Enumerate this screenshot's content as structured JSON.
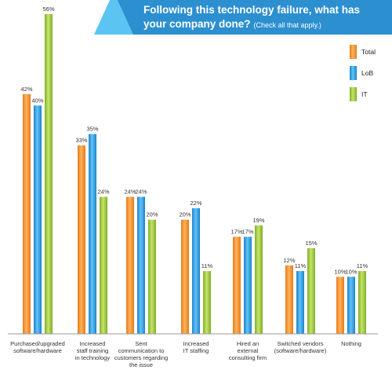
{
  "chart_data": {
    "type": "bar",
    "title_line1": "Following this technology failure, what has",
    "title_line2": "your company done?",
    "subtitle": "(Check all that apply.)",
    "categories": [
      [
        "Purchased/upgraded",
        "software/hardware"
      ],
      [
        "Increased",
        "staff training",
        "in technology"
      ],
      [
        "Sent",
        "communication to",
        "customers regarding",
        "the issue"
      ],
      [
        "Increased",
        "IT staffing"
      ],
      [
        "Hired an",
        "external",
        "consulting firm"
      ],
      [
        "Switched vendors",
        "(software/hardware)"
      ],
      [
        "Nothing"
      ]
    ],
    "series": [
      {
        "name": "Total",
        "values": [
          42,
          33,
          24,
          20,
          17,
          12,
          10
        ],
        "labels": [
          "42%",
          "33%",
          "24%",
          "20%",
          "17%",
          "12%",
          "10%"
        ]
      },
      {
        "name": "LoB",
        "values": [
          40,
          35,
          24,
          22,
          17,
          11,
          10
        ],
        "labels": [
          "40%",
          "35%",
          "24%",
          "22%",
          "17%",
          "11%",
          "10%"
        ]
      },
      {
        "name": "IT",
        "values": [
          56,
          24,
          20,
          11,
          19,
          15,
          11
        ],
        "labels": [
          "56%",
          "24%",
          "20%",
          "11%",
          "19%",
          "15%",
          "11%"
        ]
      }
    ],
    "ylim": [
      0,
      60
    ],
    "legend_position": "right",
    "colors": {
      "header_bg": "#2b8fd0",
      "header_accent": "#5cc4f2",
      "total_light": "#ffb35c",
      "total_dark": "#e77a18",
      "lob_light": "#63c2f5",
      "lob_dark": "#1a83cc",
      "it_light": "#c6e46a",
      "it_dark": "#7fae26",
      "baseline": "#999999"
    }
  }
}
